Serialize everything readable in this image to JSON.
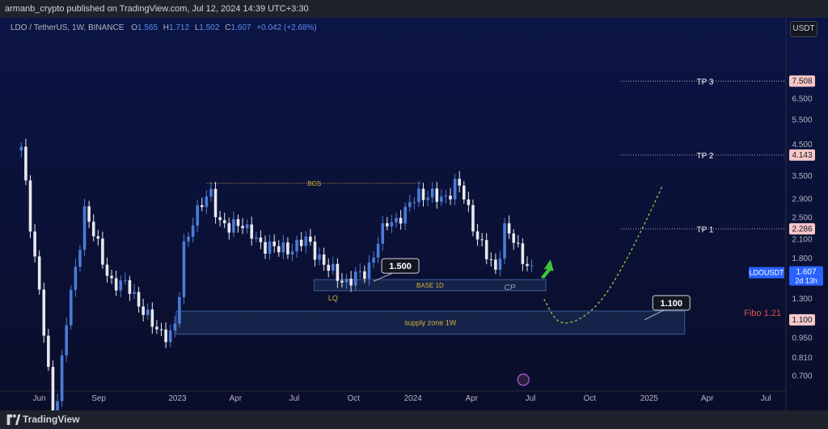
{
  "header": {
    "published": "armanb_crypto published on TradingView.com, Jul 12, 2024 14:39 UTC+3:30"
  },
  "legend": {
    "symbol": "LDO / TetherUS, 1W, BINANCE",
    "o_label": "O",
    "o": "1.565",
    "h_label": "H",
    "h": "1.712",
    "l_label": "L",
    "l": "1.502",
    "c_label": "C",
    "c": "1.607",
    "change": "+0.042 (+2.68%)"
  },
  "currency_button": "USDT",
  "footer": {
    "brand": "TradingView"
  },
  "colors": {
    "background": "#0b0e2a",
    "up_candle": "#4a7bd8",
    "down_candle": "#e8e8ee",
    "zone_fill": "#1b2a52",
    "zone_border": "#3d5a9a",
    "label_yellow": "#d4b23a",
    "target_label": "#f7c6c6",
    "fibo_red": "#e05353",
    "arrow_green": "#3ec43a",
    "projection_green": "#8ad13a"
  },
  "chart_data": {
    "type": "candlestick",
    "y_axis": {
      "scale": "log",
      "range": [
        0.62,
        12.5
      ],
      "ticks": [
        "0.700",
        "0.810",
        "0.950",
        "1.100",
        "1.300",
        "1.500",
        "1.800",
        "2.100",
        "2.500",
        "2.900",
        "3.500",
        "4.100",
        "4.500",
        "5.500",
        "6.500",
        "7.500"
      ]
    },
    "x_axis": {
      "range": [
        "2022-04-01",
        "2025-08-01"
      ],
      "ticks": [
        {
          "label": "Jun",
          "date": "2022-06-01"
        },
        {
          "label": "Sep",
          "date": "2022-09-01"
        },
        {
          "label": "2023",
          "date": "2023-01-01"
        },
        {
          "label": "Apr",
          "date": "2023-04-01"
        },
        {
          "label": "Jul",
          "date": "2023-07-01"
        },
        {
          "label": "Oct",
          "date": "2023-10-01"
        },
        {
          "label": "2024",
          "date": "2024-01-01"
        },
        {
          "label": "Apr",
          "date": "2024-04-01"
        },
        {
          "label": "Jul",
          "date": "2024-07-01"
        },
        {
          "label": "Oct",
          "date": "2024-10-01"
        },
        {
          "label": "2025",
          "date": "2025-01-01"
        },
        {
          "label": "Apr",
          "date": "2025-04-01"
        },
        {
          "label": "Jul",
          "date": "2025-07-01"
        }
      ]
    },
    "anchors": [
      {
        "date": "2022-05-04",
        "close": 4.3
      },
      {
        "date": "2022-05-18",
        "close": 2.4
      },
      {
        "date": "2022-06-01",
        "close": 1.4
      },
      {
        "date": "2022-06-15",
        "close": 0.7
      },
      {
        "date": "2022-06-22",
        "close": 0.45
      },
      {
        "date": "2022-07-01",
        "close": 0.65
      },
      {
        "date": "2022-07-15",
        "close": 1.2
      },
      {
        "date": "2022-08-01",
        "close": 1.8
      },
      {
        "date": "2022-08-08",
        "close": 2.8
      },
      {
        "date": "2022-08-22",
        "close": 2.3
      },
      {
        "date": "2022-09-08",
        "close": 1.7
      },
      {
        "date": "2022-09-22",
        "close": 1.5
      },
      {
        "date": "2022-10-08",
        "close": 1.45
      },
      {
        "date": "2022-10-22",
        "close": 1.4
      },
      {
        "date": "2022-11-08",
        "close": 1.2
      },
      {
        "date": "2022-11-22",
        "close": 1.05
      },
      {
        "date": "2022-12-08",
        "close": 1.0
      },
      {
        "date": "2022-12-22",
        "close": 0.98
      },
      {
        "date": "2023-01-01",
        "close": 1.05
      },
      {
        "date": "2023-01-08",
        "close": 1.9
      },
      {
        "date": "2023-01-22",
        "close": 2.4
      },
      {
        "date": "2023-02-08",
        "close": 2.75
      },
      {
        "date": "2023-02-22",
        "close": 3.1
      },
      {
        "date": "2023-03-08",
        "close": 2.4
      },
      {
        "date": "2023-03-22",
        "close": 2.25
      },
      {
        "date": "2023-04-08",
        "close": 2.5
      },
      {
        "date": "2023-04-22",
        "close": 2.2
      },
      {
        "date": "2023-05-08",
        "close": 2.0
      },
      {
        "date": "2023-05-22",
        "close": 2.05
      },
      {
        "date": "2023-06-08",
        "close": 1.9
      },
      {
        "date": "2023-06-22",
        "close": 1.95
      },
      {
        "date": "2023-07-08",
        "close": 2.05
      },
      {
        "date": "2023-07-22",
        "close": 2.05
      },
      {
        "date": "2023-08-08",
        "close": 1.85
      },
      {
        "date": "2023-08-22",
        "close": 1.65
      },
      {
        "date": "2023-09-08",
        "close": 1.55
      },
      {
        "date": "2023-09-22",
        "close": 1.5
      },
      {
        "date": "2023-10-08",
        "close": 1.55
      },
      {
        "date": "2023-10-22",
        "close": 1.65
      },
      {
        "date": "2023-11-08",
        "close": 2.05
      },
      {
        "date": "2023-11-22",
        "close": 2.4
      },
      {
        "date": "2023-12-08",
        "close": 2.5
      },
      {
        "date": "2023-12-22",
        "close": 2.6
      },
      {
        "date": "2024-01-08",
        "close": 3.1
      },
      {
        "date": "2024-01-22",
        "close": 3.0
      },
      {
        "date": "2024-02-08",
        "close": 2.9
      },
      {
        "date": "2024-02-22",
        "close": 3.0
      },
      {
        "date": "2024-03-08",
        "close": 3.3
      },
      {
        "date": "2024-03-22",
        "close": 2.9
      },
      {
        "date": "2024-04-08",
        "close": 2.2
      },
      {
        "date": "2024-04-22",
        "close": 1.85
      },
      {
        "date": "2024-05-08",
        "close": 1.65
      },
      {
        "date": "2024-05-22",
        "close": 2.3
      },
      {
        "date": "2024-06-08",
        "close": 2.0
      },
      {
        "date": "2024-06-22",
        "close": 1.8
      },
      {
        "date": "2024-07-08",
        "close": 1.565
      }
    ],
    "current_price": {
      "value": "1.607",
      "symbol": "LDOUSDT",
      "countdown": "2d 13h"
    },
    "targets": [
      {
        "label": "TP 3",
        "price": 7.508,
        "price_label": "7.508"
      },
      {
        "label": "TP 2",
        "price": 4.143,
        "price_label": "4.143"
      },
      {
        "label": "TP 1",
        "price": 2.286,
        "price_label": "2.286"
      }
    ],
    "fibo": {
      "label": "Fibo 1.21",
      "price": 1.1,
      "price_label": "1.100"
    },
    "bos": {
      "label": "BOS",
      "price": 3.3,
      "from": "2023-02-15",
      "to": "2024-01-15"
    },
    "zones": [
      {
        "label": "supply zone 1W",
        "top": 1.18,
        "bottom": 0.98,
        "from": "2022-12-30",
        "to": "2025-02-25"
      },
      {
        "label": "BASE 1D",
        "sublabel": "LQ",
        "top": 1.52,
        "bottom": 1.39,
        "from": "2023-08-01",
        "to": "2024-07-25"
      }
    ],
    "callouts": [
      {
        "text": "1.500",
        "price": 1.5,
        "date": "2023-11-01"
      },
      {
        "text": "1.100",
        "price": 1.1,
        "date": "2024-12-25"
      }
    ],
    "cp_label": "CP",
    "projection": [
      {
        "date": "2024-07-22",
        "price": 1.3
      },
      {
        "date": "2024-08-08",
        "price": 1.1
      },
      {
        "date": "2024-08-25",
        "price": 1.06
      },
      {
        "date": "2024-09-22",
        "price": 1.12
      },
      {
        "date": "2024-10-22",
        "price": 1.3
      },
      {
        "date": "2024-11-22",
        "price": 1.7
      },
      {
        "date": "2024-12-22",
        "price": 2.3
      },
      {
        "date": "2025-01-22",
        "price": 3.25
      }
    ]
  }
}
